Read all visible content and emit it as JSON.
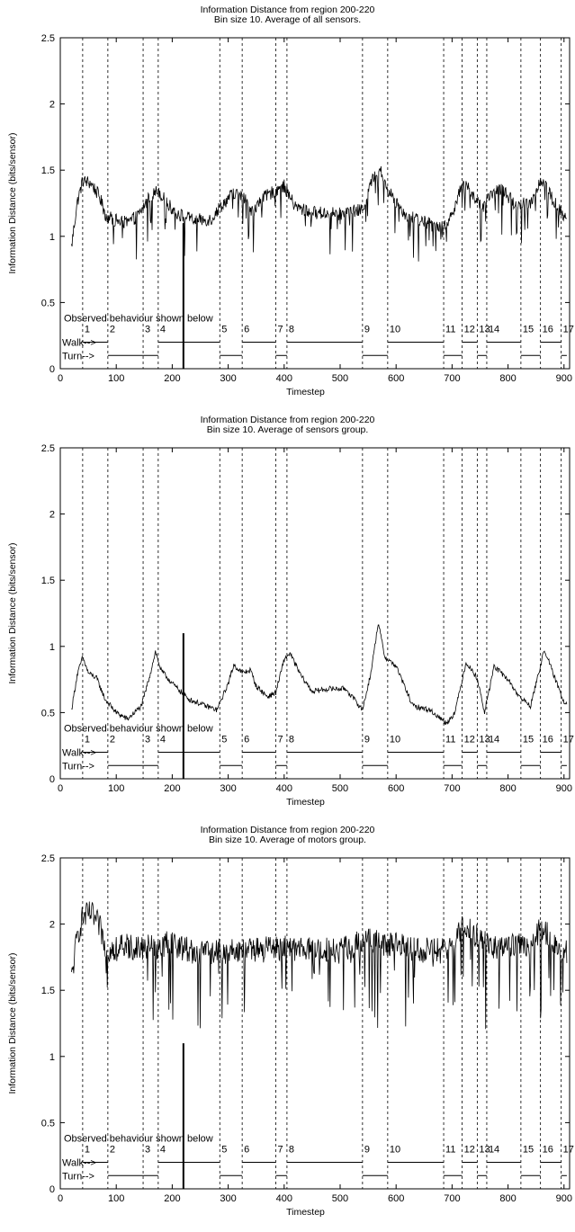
{
  "chart_data": [
    {
      "type": "line",
      "title": "Information Distance from region 200-220",
      "subtitle": "Bin size 10. Average of all sensors.",
      "xlabel": "Timestep",
      "ylabel": "Information Distance (bits/sensor)",
      "xlim": [
        0,
        910
      ],
      "ylim": [
        0,
        2.5
      ],
      "xticks": [
        0,
        100,
        200,
        300,
        400,
        500,
        600,
        700,
        800,
        900
      ],
      "yticks": [
        0,
        0.5,
        1,
        1.5,
        2,
        2.5
      ],
      "grid": false,
      "annotation": "Observed behaviour shown below",
      "walk_label": "Walk-->",
      "turn_label": "Turn-->",
      "marker_line_x": 220,
      "trace_profile": [
        [
          20,
          0.92
        ],
        [
          30,
          1.25
        ],
        [
          40,
          1.42
        ],
        [
          55,
          1.4
        ],
        [
          70,
          1.3
        ],
        [
          82,
          1.15
        ],
        [
          100,
          1.12
        ],
        [
          120,
          1.1
        ],
        [
          140,
          1.16
        ],
        [
          160,
          1.3
        ],
        [
          175,
          1.35
        ],
        [
          190,
          1.25
        ],
        [
          210,
          1.17
        ],
        [
          240,
          1.12
        ],
        [
          270,
          1.13
        ],
        [
          285,
          1.22
        ],
        [
          310,
          1.33
        ],
        [
          330,
          1.28
        ],
        [
          345,
          1.18
        ],
        [
          360,
          1.28
        ],
        [
          385,
          1.35
        ],
        [
          400,
          1.38
        ],
        [
          420,
          1.22
        ],
        [
          450,
          1.18
        ],
        [
          500,
          1.17
        ],
        [
          540,
          1.2
        ],
        [
          555,
          1.4
        ],
        [
          570,
          1.52
        ],
        [
          585,
          1.35
        ],
        [
          620,
          1.15
        ],
        [
          660,
          1.1
        ],
        [
          690,
          1.07
        ],
        [
          720,
          1.4
        ],
        [
          740,
          1.3
        ],
        [
          755,
          1.2
        ],
        [
          770,
          1.32
        ],
        [
          790,
          1.36
        ],
        [
          810,
          1.25
        ],
        [
          840,
          1.25
        ],
        [
          860,
          1.44
        ],
        [
          880,
          1.28
        ],
        [
          900,
          1.14
        ]
      ],
      "noise_amplitude": 0.05,
      "dip_depth": 0.25
    },
    {
      "type": "line",
      "title": "Information Distance from region 200-220",
      "subtitle": "Bin size 10. Average of sensors group.",
      "xlabel": "Timestep",
      "ylabel": "Information Distance (bits/sensor)",
      "xlim": [
        0,
        910
      ],
      "ylim": [
        0,
        2.5
      ],
      "xticks": [
        0,
        100,
        200,
        300,
        400,
        500,
        600,
        700,
        800,
        900
      ],
      "yticks": [
        0,
        0.5,
        1,
        1.5,
        2,
        2.5
      ],
      "grid": false,
      "annotation": "Observed behaviour shown below",
      "walk_label": "Walk-->",
      "turn_label": "Turn-->",
      "marker_line_x": 220,
      "trace_profile": [
        [
          20,
          0.52
        ],
        [
          30,
          0.78
        ],
        [
          40,
          0.92
        ],
        [
          50,
          0.8
        ],
        [
          65,
          0.76
        ],
        [
          80,
          0.6
        ],
        [
          100,
          0.5
        ],
        [
          120,
          0.45
        ],
        [
          145,
          0.55
        ],
        [
          160,
          0.78
        ],
        [
          170,
          0.96
        ],
        [
          180,
          0.82
        ],
        [
          200,
          0.72
        ],
        [
          230,
          0.6
        ],
        [
          260,
          0.55
        ],
        [
          280,
          0.52
        ],
        [
          300,
          0.72
        ],
        [
          310,
          0.86
        ],
        [
          325,
          0.8
        ],
        [
          340,
          0.82
        ],
        [
          350,
          0.7
        ],
        [
          370,
          0.62
        ],
        [
          385,
          0.65
        ],
        [
          400,
          0.9
        ],
        [
          410,
          0.95
        ],
        [
          430,
          0.78
        ],
        [
          450,
          0.66
        ],
        [
          480,
          0.68
        ],
        [
          510,
          0.68
        ],
        [
          540,
          0.52
        ],
        [
          555,
          0.8
        ],
        [
          568,
          1.18
        ],
        [
          580,
          0.92
        ],
        [
          600,
          0.85
        ],
        [
          630,
          0.55
        ],
        [
          660,
          0.52
        ],
        [
          690,
          0.42
        ],
        [
          705,
          0.5
        ],
        [
          725,
          0.88
        ],
        [
          745,
          0.76
        ],
        [
          758,
          0.5
        ],
        [
          775,
          0.85
        ],
        [
          800,
          0.75
        ],
        [
          820,
          0.62
        ],
        [
          840,
          0.55
        ],
        [
          855,
          0.8
        ],
        [
          865,
          0.98
        ],
        [
          880,
          0.8
        ],
        [
          900,
          0.58
        ]
      ],
      "noise_amplitude": 0.02,
      "dip_depth": 0.0
    },
    {
      "type": "line",
      "title": "Information Distance from region 200-220",
      "subtitle": "Bin size 10. Average of motors group.",
      "xlabel": "Timestep",
      "ylabel": "Information Distance (bits/sensor)",
      "xlim": [
        0,
        910
      ],
      "ylim": [
        0,
        2.5
      ],
      "xticks": [
        0,
        100,
        200,
        300,
        400,
        500,
        600,
        700,
        800,
        900
      ],
      "yticks": [
        0,
        0.5,
        1,
        1.5,
        2,
        2.5
      ],
      "grid": false,
      "annotation": "Observed behaviour shown below",
      "walk_label": "Walk-->",
      "turn_label": "Turn-->",
      "marker_line_x": 220,
      "trace_profile": [
        [
          20,
          1.58
        ],
        [
          30,
          1.9
        ],
        [
          40,
          2.05
        ],
        [
          55,
          2.08
        ],
        [
          70,
          1.98
        ],
        [
          85,
          1.8
        ],
        [
          120,
          1.83
        ],
        [
          160,
          1.83
        ],
        [
          200,
          1.85
        ],
        [
          250,
          1.78
        ],
        [
          300,
          1.8
        ],
        [
          350,
          1.8
        ],
        [
          400,
          1.82
        ],
        [
          450,
          1.8
        ],
        [
          500,
          1.8
        ],
        [
          550,
          1.88
        ],
        [
          580,
          1.85
        ],
        [
          620,
          1.82
        ],
        [
          660,
          1.8
        ],
        [
          700,
          1.8
        ],
        [
          720,
          2.0
        ],
        [
          760,
          1.85
        ],
        [
          800,
          1.82
        ],
        [
          840,
          1.85
        ],
        [
          860,
          1.98
        ],
        [
          880,
          1.86
        ],
        [
          900,
          1.78
        ]
      ],
      "noise_amplitude": 0.1,
      "dip_depth": 0.45
    }
  ],
  "behaviour": {
    "boundaries": [
      40,
      85,
      148,
      175,
      285,
      325,
      385,
      405,
      540,
      585,
      685,
      718,
      745,
      762,
      823,
      858,
      895
    ],
    "labels": [
      "1",
      "2",
      "3",
      "4",
      "5",
      "6",
      "7",
      "8",
      "9",
      "10",
      "11",
      "12",
      "13",
      "14",
      "15",
      "16",
      "17"
    ],
    "walk_segments": [
      [
        40,
        85
      ],
      [
        175,
        285
      ],
      [
        325,
        385
      ],
      [
        405,
        540
      ],
      [
        585,
        685
      ],
      [
        718,
        745
      ],
      [
        762,
        823
      ],
      [
        858,
        895
      ]
    ],
    "turn_segments": [
      [
        85,
        175
      ],
      [
        285,
        325
      ],
      [
        385,
        405
      ],
      [
        540,
        585
      ],
      [
        685,
        718
      ],
      [
        745,
        762
      ],
      [
        823,
        858
      ],
      [
        895,
        905
      ]
    ]
  }
}
